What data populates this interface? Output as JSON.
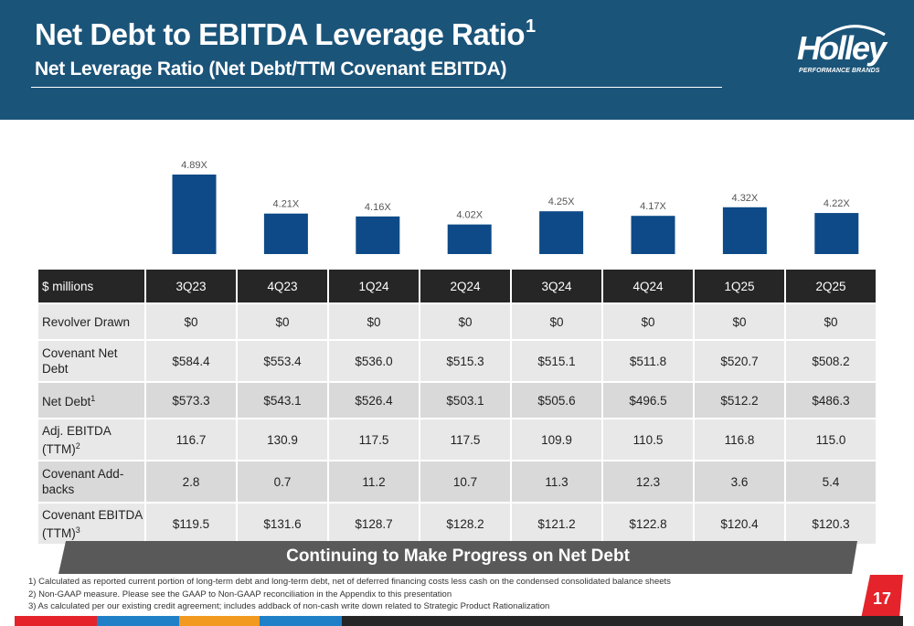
{
  "header": {
    "title": "Net Debt to EBITDA Leverage Ratio",
    "title_sup": "1",
    "subtitle": "Net Leverage Ratio (Net Debt/TTM Covenant EBITDA)"
  },
  "logo": {
    "word": "Holley",
    "tagline": "PERFORMANCE BRANDS"
  },
  "chart_data": {
    "type": "bar",
    "categories": [
      "3Q23",
      "4Q23",
      "1Q24",
      "2Q24",
      "3Q24",
      "4Q24",
      "1Q25",
      "2Q25"
    ],
    "values": [
      4.89,
      4.21,
      4.16,
      4.02,
      4.25,
      4.17,
      4.32,
      4.22
    ],
    "data_labels": [
      "4.89X",
      "4.21X",
      "4.16X",
      "4.02X",
      "4.25X",
      "4.17X",
      "4.32X",
      "4.22X"
    ],
    "title": "",
    "xlabel": "",
    "ylabel": "",
    "bar_color": "#0d4a87",
    "grid": false
  },
  "table": {
    "header_label": "$ millions",
    "columns": [
      "3Q23",
      "4Q23",
      "1Q24",
      "2Q24",
      "3Q24",
      "4Q24",
      "1Q25",
      "2Q25"
    ],
    "rows": [
      {
        "label": "Revolver Drawn",
        "sup": "",
        "values": [
          "$0",
          "$0",
          "$0",
          "$0",
          "$0",
          "$0",
          "$0",
          "$0"
        ]
      },
      {
        "label": "Covenant Net Debt",
        "sup": "",
        "values": [
          "$584.4",
          "$553.4",
          "$536.0",
          "$515.3",
          "$515.1",
          "$511.8",
          "$520.7",
          "$508.2"
        ]
      },
      {
        "label": "Net Debt",
        "sup": "1",
        "values": [
          "$573.3",
          "$543.1",
          "$526.4",
          "$503.1",
          "$505.6",
          "$496.5",
          "$512.2",
          "$486.3"
        ]
      },
      {
        "label": "Adj. EBITDA (TTM)",
        "sup": "2",
        "values": [
          "116.7",
          "130.9",
          "117.5",
          "117.5",
          "109.9",
          "110.5",
          "116.8",
          "115.0"
        ]
      },
      {
        "label": "Covenant Add-backs",
        "sup": "",
        "values": [
          "2.8",
          "0.7",
          "11.2",
          "10.7",
          "11.3",
          "12.3",
          "3.6",
          "5.4"
        ]
      },
      {
        "label": "Covenant EBITDA (TTM)",
        "sup": "3",
        "values": [
          "$119.5",
          "$131.6",
          "$128.7",
          "$128.2",
          "$121.2",
          "$122.8",
          "$120.4",
          "$120.3"
        ]
      }
    ]
  },
  "banner": "Continuing to Make Progress on Net Debt",
  "footnotes": [
    "1) Calculated as reported current portion of long-term debt and long-term debt, net of deferred financing costs less cash on the condensed consolidated balance sheets",
    "2) Non-GAAP measure. Please see the GAAP to Non-GAAP reconciliation in the Appendix to this presentation",
    "3) As calculated per our existing credit agreement; includes addback of non-cash write down related to Strategic Product Rationalization"
  ],
  "page_number": "17",
  "colors": {
    "header_bg": "#1b5479",
    "bar": "#0d4a87",
    "table_header": "#262626",
    "banner": "#595959",
    "accent_red": "#e4232b",
    "strip_blue": "#1f80c8",
    "strip_orange": "#f29a1f",
    "strip_dark": "#262626"
  }
}
